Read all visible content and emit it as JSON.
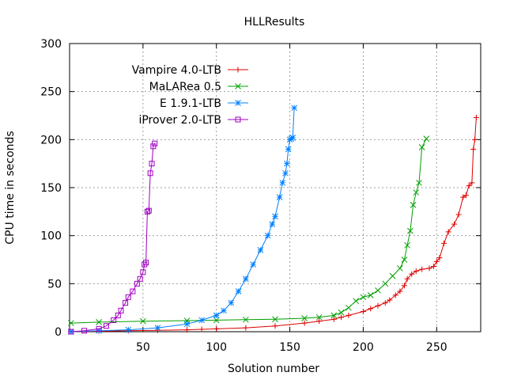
{
  "chart_data": {
    "type": "line",
    "title": "HLLResults",
    "xlabel": "Solution number",
    "ylabel": "CPU time in seconds",
    "xlim": [
      0,
      280
    ],
    "ylim": [
      0,
      300
    ],
    "xticks": [
      "50",
      "100",
      "150",
      "200",
      "250"
    ],
    "yticks": [
      "0",
      "50",
      "100",
      "150",
      "200",
      "250",
      "300"
    ],
    "grid": true,
    "legend_position": "top-left",
    "series": [
      {
        "name": "Vampire 4.0-LTB",
        "color": "#e00000",
        "marker": "plus",
        "x": [
          1,
          20,
          40,
          60,
          80,
          90,
          100,
          120,
          140,
          160,
          170,
          180,
          185,
          190,
          200,
          205,
          210,
          215,
          218,
          222,
          225,
          228,
          230,
          233,
          236,
          240,
          245,
          248,
          250,
          252,
          255,
          258,
          262,
          265,
          268,
          270,
          272,
          274,
          275,
          276,
          277
        ],
        "values": [
          0,
          0.5,
          1,
          1.5,
          2,
          2.5,
          3,
          4,
          6,
          9,
          11,
          13,
          15,
          17,
          21,
          24,
          27,
          30,
          33,
          38,
          42,
          48,
          55,
          60,
          63,
          65,
          66,
          68,
          73,
          77,
          92,
          104,
          112,
          122,
          140,
          142,
          152,
          155,
          190,
          200,
          223
        ]
      },
      {
        "name": "MaLARea 0.5",
        "color": "#00a000",
        "marker": "cross",
        "x": [
          1,
          20,
          50,
          80,
          100,
          120,
          140,
          160,
          170,
          180,
          185,
          190,
          195,
          200,
          205,
          210,
          215,
          220,
          225,
          228,
          230,
          232,
          234,
          236,
          238,
          240,
          243
        ],
        "values": [
          9,
          10,
          11,
          11.5,
          12,
          12.5,
          13,
          14,
          15,
          17,
          20,
          25,
          32,
          36,
          38,
          43,
          50,
          58,
          66,
          75,
          90,
          105,
          132,
          145,
          155,
          192,
          201
        ]
      },
      {
        "name": "E 1.9.1-LTB",
        "color": "#0080ff",
        "marker": "star",
        "x": [
          1,
          20,
          40,
          60,
          80,
          90,
          100,
          105,
          110,
          115,
          120,
          125,
          130,
          135,
          138,
          140,
          143,
          145,
          147,
          148,
          149,
          150,
          151,
          152,
          153
        ],
        "values": [
          0,
          1,
          2,
          4,
          8,
          12,
          17,
          22,
          30,
          42,
          55,
          70,
          85,
          100,
          112,
          120,
          140,
          155,
          165,
          175,
          190,
          200,
          201,
          202,
          233
        ]
      },
      {
        "name": "iProver 2.0-LTB",
        "color": "#a000c0",
        "marker": "square",
        "x": [
          1,
          10,
          20,
          25,
          30,
          33,
          35,
          38,
          40,
          43,
          46,
          48,
          50,
          51,
          52,
          53,
          54,
          55,
          56,
          57,
          58
        ],
        "values": [
          0,
          1,
          3,
          6,
          12,
          17,
          22,
          30,
          36,
          42,
          50,
          55,
          62,
          70,
          72,
          125,
          126,
          165,
          175,
          193,
          196
        ]
      }
    ]
  }
}
